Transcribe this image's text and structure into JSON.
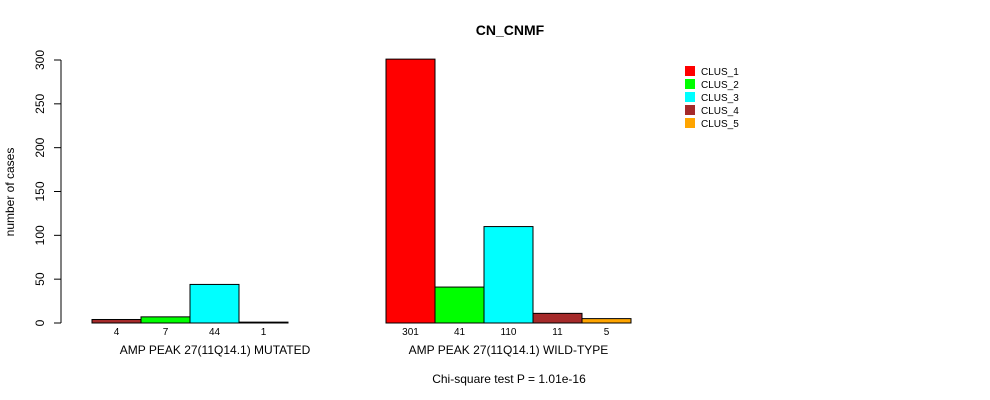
{
  "chart_data": {
    "type": "bar",
    "title": "CN_CNMF",
    "ylabel": "number of cases",
    "xlabel": "",
    "ylim": [
      0,
      300
    ],
    "yticks": [
      0,
      50,
      100,
      150,
      200,
      250,
      300
    ],
    "footnote": "Chi-square test P = 1.01e-16",
    "groups": [
      {
        "label": "AMP PEAK 27(11Q14.1) MUTATED",
        "bars": [
          {
            "series": "CLUS_4",
            "value": 4,
            "label": "4"
          },
          {
            "series": "CLUS_2",
            "value": 7,
            "label": "7"
          },
          {
            "series": "CLUS_3",
            "value": 44,
            "label": "44"
          },
          {
            "series": "CLUS_5",
            "value": 1,
            "label": "1"
          }
        ]
      },
      {
        "label": "AMP PEAK 27(11Q14.1) WILD-TYPE",
        "bars": [
          {
            "series": "CLUS_1",
            "value": 301,
            "label": "301"
          },
          {
            "series": "CLUS_2",
            "value": 41,
            "label": "41"
          },
          {
            "series": "CLUS_3",
            "value": 110,
            "label": "110"
          },
          {
            "series": "CLUS_4",
            "value": 11,
            "label": "11"
          },
          {
            "series": "CLUS_5",
            "value": 5,
            "label": "5"
          }
        ]
      }
    ],
    "legend": [
      {
        "name": "CLUS_1",
        "color": "#ff0000"
      },
      {
        "name": "CLUS_2",
        "color": "#00ff00"
      },
      {
        "name": "CLUS_3",
        "color": "#00ffff"
      },
      {
        "name": "CLUS_4",
        "color": "#a52a2a"
      },
      {
        "name": "CLUS_5",
        "color": "#ffa500"
      }
    ]
  }
}
